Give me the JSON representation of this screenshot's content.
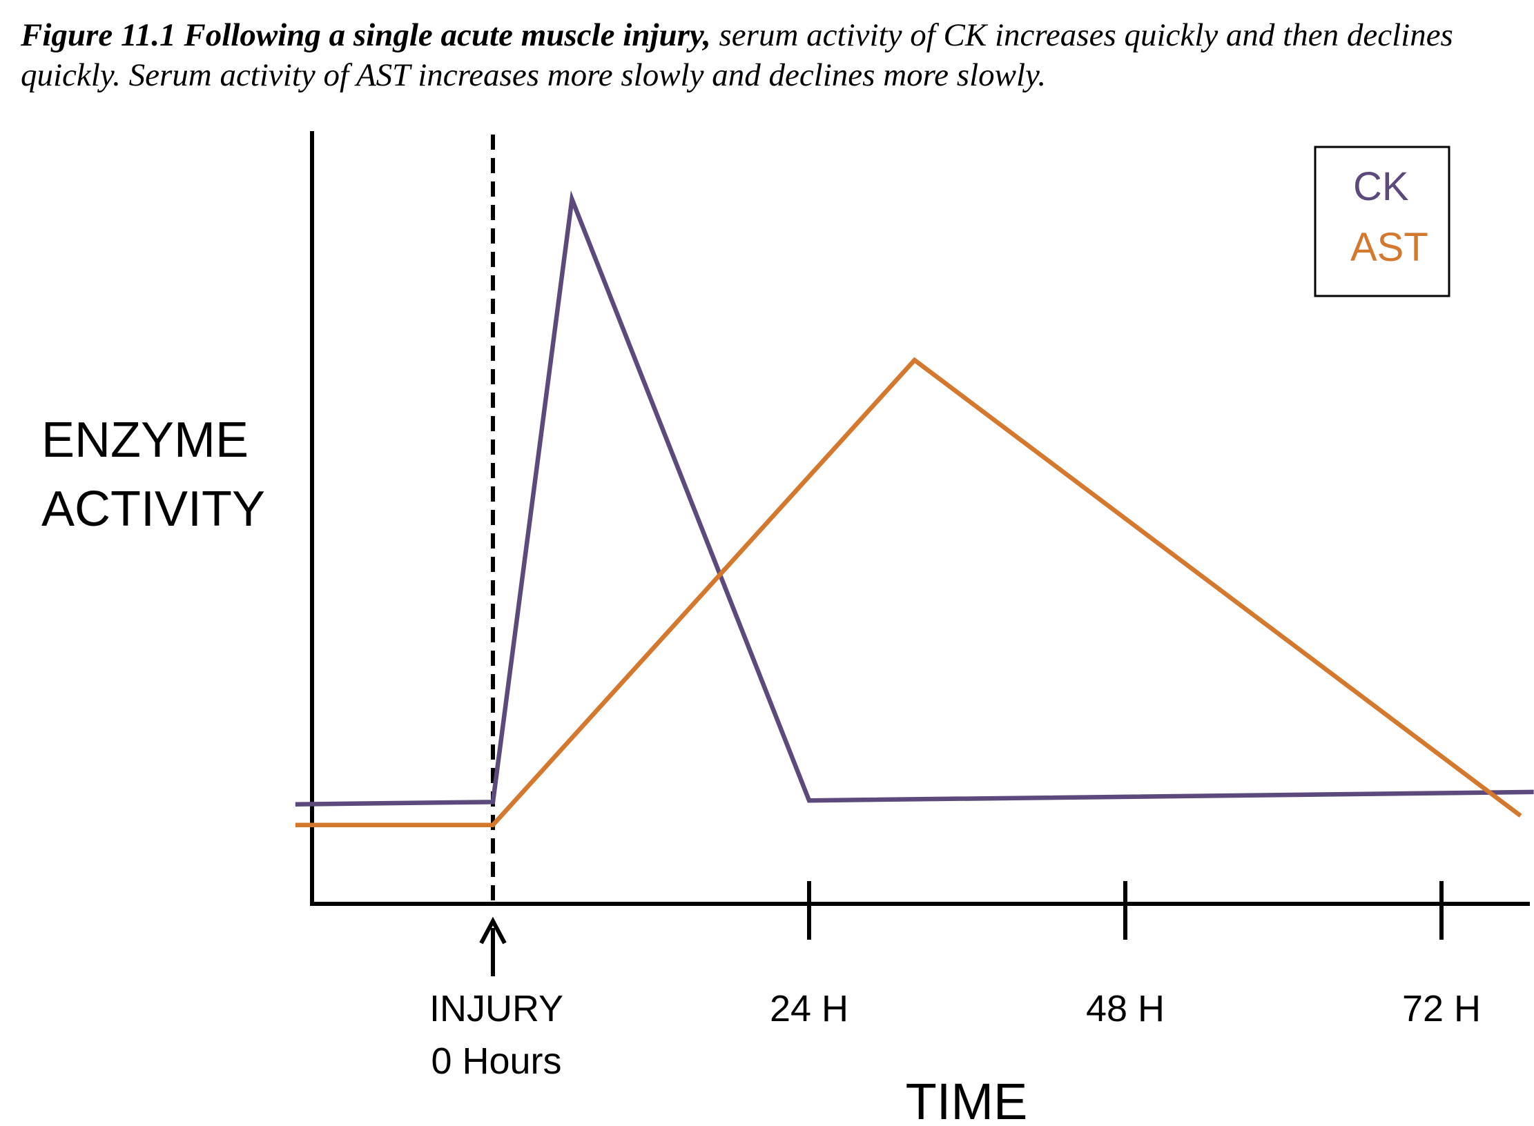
{
  "caption": {
    "lead": "Figure 11.1 Following a single acute muscle injury,",
    "rest": " serum activity of CK increases quickly and then declines quickly. Serum activity of AST increases more slowly and declines more slowly."
  },
  "chart_data": {
    "type": "line",
    "ylabel_lines": [
      "ENZYME",
      "ACTIVITY"
    ],
    "xlabel": "TIME",
    "xlim": [
      -17,
      79
    ],
    "ylim": [
      0,
      100
    ],
    "grid": false,
    "legend_position": "top-right",
    "injury_marker": {
      "x": 0,
      "label_lines": [
        "INJURY",
        "0 Hours"
      ]
    },
    "x_ticks": [
      {
        "x": 24,
        "label": "24 H"
      },
      {
        "x": 48,
        "label": "48 H"
      },
      {
        "x": 72,
        "label": "72 H"
      }
    ],
    "series": [
      {
        "name": "CK",
        "color": "#5B4A7B",
        "points": [
          [
            -15,
            13
          ],
          [
            0,
            13.3
          ],
          [
            6,
            92
          ],
          [
            24,
            13.5
          ],
          [
            79,
            14.6
          ]
        ]
      },
      {
        "name": "AST",
        "color": "#D4782E",
        "points": [
          [
            -15,
            10.3
          ],
          [
            0,
            10.3
          ],
          [
            32,
            71
          ],
          [
            78,
            11.5
          ]
        ]
      }
    ]
  }
}
